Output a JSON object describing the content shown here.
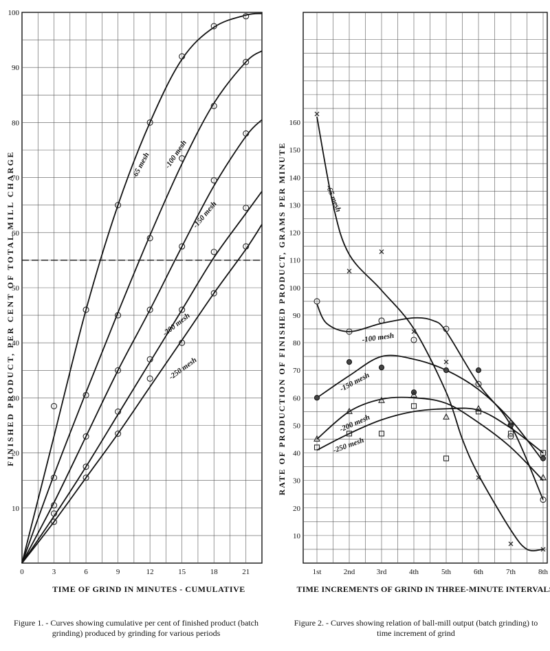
{
  "chart_data": [
    {
      "type": "line",
      "ylabel": "FINISHED PRODUCT, PER CENT OF TOTAL MILL CHARGE",
      "xlabel": "TIME OF GRIND IN MINUTES - CUMULATIVE",
      "xlim": [
        0,
        22.5
      ],
      "ylim": [
        0,
        100
      ],
      "x_ticks": [
        "0",
        "3",
        "6",
        "9",
        "12",
        "15",
        "18",
        "21"
      ],
      "y_ticks": [
        "10",
        "20",
        "30",
        "40",
        "50",
        "60",
        "70",
        "80",
        "90",
        "100"
      ],
      "grid": true,
      "reference_line": {
        "y": 55,
        "style": "dashed"
      },
      "series": [
        {
          "name": "-65 mesh",
          "curve": [
            [
              0,
              0
            ],
            [
              3,
              23
            ],
            [
              6,
              46
            ],
            [
              9,
              65
            ],
            [
              12,
              80
            ],
            [
              15,
              91.5
            ],
            [
              18,
              97.3
            ],
            [
              21,
              99.5
            ],
            [
              22.5,
              99.8
            ]
          ],
          "points": [
            [
              3,
              28.5
            ],
            [
              6,
              46
            ],
            [
              9,
              65
            ],
            [
              12,
              80
            ],
            [
              15,
              92
            ],
            [
              18,
              97.5
            ],
            [
              21,
              99.3
            ]
          ]
        },
        {
          "name": "-100 mesh",
          "curve": [
            [
              0,
              0
            ],
            [
              3,
              16
            ],
            [
              6,
              31
            ],
            [
              9,
              45.5
            ],
            [
              12,
              59.5
            ],
            [
              15,
              72.5
            ],
            [
              18,
              83.5
            ],
            [
              21,
              91
            ],
            [
              22.5,
              93
            ]
          ],
          "points": [
            [
              3,
              15.5
            ],
            [
              6,
              30.5
            ],
            [
              9,
              45
            ],
            [
              12,
              59
            ],
            [
              15,
              73.5
            ],
            [
              18,
              83
            ],
            [
              21,
              91
            ]
          ]
        },
        {
          "name": "-150 mesh",
          "curve": [
            [
              0,
              0
            ],
            [
              3,
              11
            ],
            [
              6,
              23
            ],
            [
              9,
              35
            ],
            [
              12,
              46
            ],
            [
              15,
              57.5
            ],
            [
              18,
              68.5
            ],
            [
              21,
              77.5
            ],
            [
              22.5,
              80.5
            ]
          ],
          "points": [
            [
              3,
              10.5
            ],
            [
              6,
              23
            ],
            [
              9,
              35
            ],
            [
              12,
              46
            ],
            [
              15,
              57.5
            ],
            [
              18,
              69.5
            ],
            [
              21,
              78
            ]
          ]
        },
        {
          "name": "-200 mesh",
          "curve": [
            [
              0,
              0
            ],
            [
              3,
              8.5
            ],
            [
              6,
              17.5
            ],
            [
              9,
              27
            ],
            [
              12,
              36.5
            ],
            [
              15,
              46
            ],
            [
              18,
              55.5
            ],
            [
              21,
              63.5
            ],
            [
              22.5,
              67.5
            ]
          ],
          "points": [
            [
              3,
              9
            ],
            [
              6,
              17.5
            ],
            [
              9,
              27.5
            ],
            [
              12,
              37
            ],
            [
              15,
              46
            ],
            [
              18,
              56.5
            ],
            [
              21,
              64.5
            ]
          ]
        },
        {
          "name": "-250 mesh",
          "curve": [
            [
              0,
              0
            ],
            [
              3,
              7.5
            ],
            [
              6,
              15.5
            ],
            [
              9,
              23.5
            ],
            [
              12,
              32
            ],
            [
              15,
              40.5
            ],
            [
              18,
              49
            ],
            [
              21,
              57
            ],
            [
              22.5,
              61.5
            ]
          ],
          "points": [
            [
              3,
              7.5
            ],
            [
              6,
              15.5
            ],
            [
              9,
              23.5
            ],
            [
              12,
              33.5
            ],
            [
              15,
              40
            ],
            [
              18,
              49
            ],
            [
              21,
              57.5
            ]
          ]
        }
      ]
    },
    {
      "type": "line",
      "ylabel": "RATE OF PRODUCTION OF FINISHED PRODUCT, GRAMS PER MINUTE",
      "xlabel": "TIME INCREMENTS OF GRIND IN THREE-MINUTE INTERVALS",
      "categories": [
        "1st",
        "2nd",
        "3rd",
        "4th",
        "5th",
        "6th",
        "7th",
        "8th"
      ],
      "ylim": [
        0,
        170
      ],
      "y_ticks": [
        "10",
        "20",
        "30",
        "40",
        "50",
        "60",
        "70",
        "80",
        "90",
        "100",
        "110",
        "120",
        "130",
        "140",
        "150",
        "160"
      ],
      "grid": true,
      "series": [
        {
          "name": "-65 mesh",
          "marker": "x",
          "curve": [
            [
              1,
              162
            ],
            [
              1.5,
              130
            ],
            [
              2,
              112
            ],
            [
              3,
              99
            ],
            [
              4,
              85
            ],
            [
              5,
              62
            ],
            [
              5.5,
              45
            ],
            [
              6,
              32
            ],
            [
              7,
              12
            ],
            [
              7.5,
              5
            ],
            [
              8,
              5
            ]
          ],
          "points": [
            [
              1,
              163
            ],
            [
              2,
              106
            ],
            [
              3,
              113
            ],
            [
              4,
              84
            ],
            [
              5,
              73
            ],
            [
              6,
              31
            ],
            [
              7,
              7
            ],
            [
              8,
              5
            ]
          ]
        },
        {
          "name": "-100 mesh",
          "marker": "circle",
          "curve": [
            [
              1,
              94
            ],
            [
              1.3,
              87
            ],
            [
              2,
              84
            ],
            [
              3,
              87
            ],
            [
              4,
              89
            ],
            [
              4.6,
              88
            ],
            [
              5,
              84
            ],
            [
              6,
              65
            ],
            [
              7,
              50
            ],
            [
              8,
              23
            ]
          ],
          "points": [
            [
              1,
              95
            ],
            [
              2,
              84
            ],
            [
              3,
              88
            ],
            [
              4,
              81
            ],
            [
              5,
              85
            ],
            [
              6,
              65
            ],
            [
              7,
              46
            ],
            [
              8,
              23
            ]
          ]
        },
        {
          "name": "-150 mesh",
          "marker": "dot",
          "curve": [
            [
              1,
              60
            ],
            [
              2,
              68
            ],
            [
              3,
              75
            ],
            [
              4,
              74
            ],
            [
              5,
              70
            ],
            [
              6,
              63
            ],
            [
              7,
              52
            ],
            [
              8,
              37
            ]
          ],
          "points": [
            [
              1,
              60
            ],
            [
              2,
              73
            ],
            [
              3,
              71
            ],
            [
              4,
              62
            ],
            [
              5,
              70
            ],
            [
              6,
              70
            ],
            [
              7,
              50
            ],
            [
              8,
              38
            ]
          ]
        },
        {
          "name": "-200 mesh",
          "marker": "triangle",
          "curve": [
            [
              1,
              45
            ],
            [
              2,
              55
            ],
            [
              3,
              59.5
            ],
            [
              4,
              60
            ],
            [
              5,
              58
            ],
            [
              6,
              51
            ],
            [
              7,
              42
            ],
            [
              8,
              30
            ]
          ],
          "points": [
            [
              1,
              45
            ],
            [
              2,
              55
            ],
            [
              3,
              59
            ],
            [
              4,
              61
            ],
            [
              5,
              53
            ],
            [
              6,
              56
            ],
            [
              7,
              51
            ],
            [
              8,
              31
            ]
          ]
        },
        {
          "name": "-250 mesh",
          "marker": "square",
          "curve": [
            [
              1,
              41
            ],
            [
              2,
              47
            ],
            [
              3,
              52
            ],
            [
              4,
              55
            ],
            [
              5,
              56
            ],
            [
              6,
              55.5
            ],
            [
              7,
              49
            ],
            [
              8,
              40
            ]
          ],
          "points": [
            [
              1,
              42
            ],
            [
              2,
              47
            ],
            [
              3,
              47
            ],
            [
              4,
              57
            ],
            [
              5,
              38
            ],
            [
              6,
              55
            ],
            [
              7,
              47
            ],
            [
              8,
              40
            ]
          ]
        }
      ]
    }
  ],
  "captions": {
    "figure1": "Figure 1. - Curves showing cumulative per cent of finished product (batch grinding) produced by grinding for various periods",
    "figure2": "Figure 2. - Curves showing relation of ball-mill output (batch grinding) to time increment of grind"
  }
}
